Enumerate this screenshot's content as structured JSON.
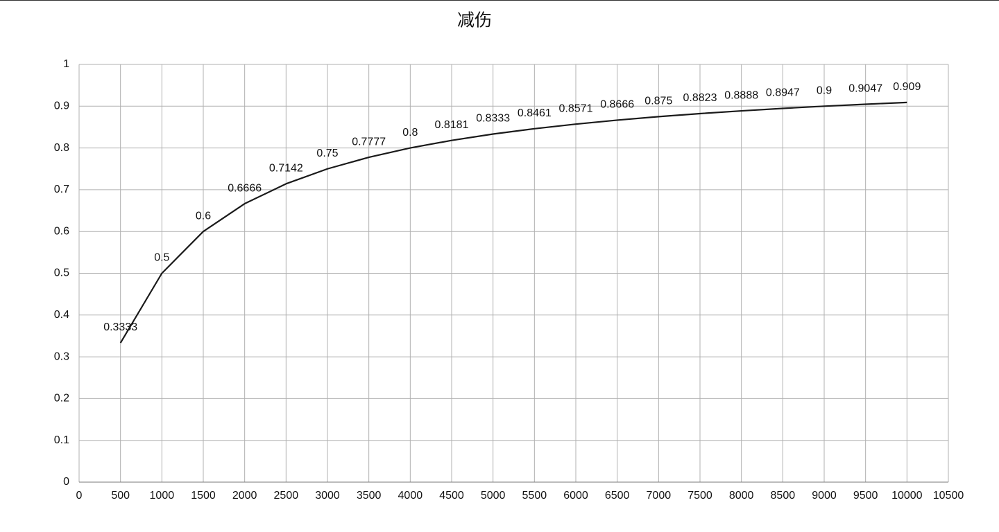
{
  "chart_data": {
    "type": "line",
    "title": "减伤",
    "x": [
      500,
      1000,
      1500,
      2000,
      2500,
      3000,
      3500,
      4000,
      4500,
      5000,
      5500,
      6000,
      6500,
      7000,
      7500,
      8000,
      8500,
      9000,
      9500,
      10000
    ],
    "values": [
      0.3333,
      0.5,
      0.6,
      0.6666,
      0.7142,
      0.75,
      0.7777,
      0.8,
      0.8181,
      0.8333,
      0.8461,
      0.8571,
      0.8666,
      0.875,
      0.8823,
      0.8888,
      0.8947,
      0.9,
      0.9047,
      0.909
    ],
    "color": "#1a1a1a",
    "xlim": [
      0,
      10500
    ],
    "xticks": [
      0,
      500,
      1000,
      1500,
      2000,
      2500,
      3000,
      3500,
      4000,
      4500,
      5000,
      5500,
      6000,
      6500,
      7000,
      7500,
      8000,
      8500,
      9000,
      9500,
      10000,
      10500
    ],
    "ylim": [
      0,
      1
    ],
    "yticks": [
      0,
      0.1,
      0.2,
      0.3,
      0.4,
      0.5,
      0.6,
      0.7,
      0.8,
      0.9,
      1
    ],
    "grid": true
  }
}
